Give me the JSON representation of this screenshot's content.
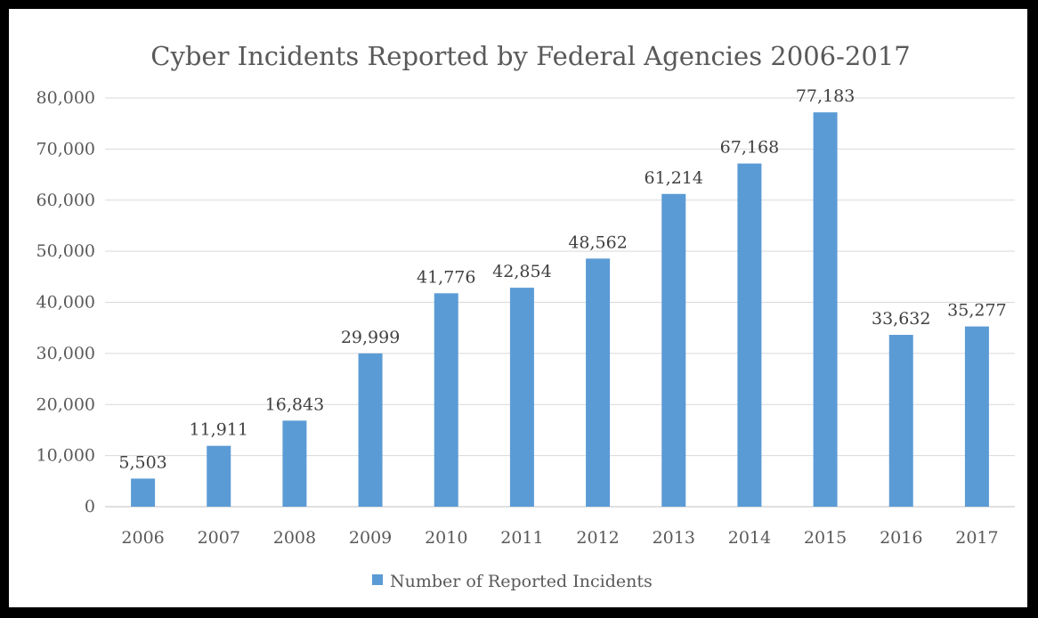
{
  "chart_data": {
    "type": "bar",
    "title": "Cyber Incidents Reported by Federal Agencies 2006-2017",
    "categories": [
      "2006",
      "2007",
      "2008",
      "2009",
      "2010",
      "2011",
      "2012",
      "2013",
      "2014",
      "2015",
      "2016",
      "2017"
    ],
    "series": [
      {
        "name": "Number of Reported Incidents",
        "values": [
          5503,
          11911,
          16843,
          29999,
          41776,
          42854,
          48562,
          61214,
          67168,
          77183,
          33632,
          35277
        ],
        "data_labels": [
          "5,503",
          "11,911",
          "16,843",
          "29,999",
          "41,776",
          "42,854",
          "48,562",
          "61,214",
          "67,168",
          "77,183",
          "33,632",
          "35,277"
        ],
        "color": "#5B9BD5"
      }
    ],
    "ylim": [
      0,
      80000
    ],
    "yticks": [
      0,
      10000,
      20000,
      30000,
      40000,
      50000,
      60000,
      70000,
      80000
    ],
    "ytick_labels": [
      "0",
      "10,000",
      "20,000",
      "30,000",
      "40,000",
      "50,000",
      "60,000",
      "70,000",
      "80,000"
    ],
    "xlabel": "",
    "ylabel": "",
    "grid": true,
    "legend_position": "bottom"
  }
}
